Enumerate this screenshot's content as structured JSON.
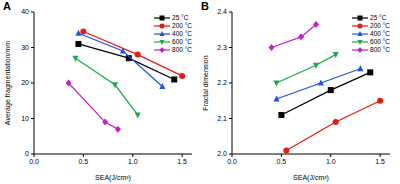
{
  "chart_data": [
    {
      "type": "line",
      "title": "A",
      "x_label": "SEA(J/cm³)",
      "y_label": "Average fragmentation/mm",
      "xlim": [
        0,
        1.6
      ],
      "xticks": [
        {
          "value": 0,
          "label": "0.0"
        },
        {
          "value": 0.5,
          "label": "0.5"
        },
        {
          "value": 1,
          "label": "1.0"
        },
        {
          "value": 1.5,
          "label": "1.5"
        }
      ],
      "ylim": [
        0,
        40
      ],
      "yticks": [
        0,
        10,
        20,
        30,
        40
      ],
      "legend": "upper right",
      "grid": false,
      "series": [
        {
          "name": "25 °C",
          "color": "#000000",
          "marker": "square",
          "x": [
            0.45,
            0.96,
            1.42
          ],
          "values": [
            31,
            27,
            21
          ]
        },
        {
          "name": "200 °C",
          "color": "#e8190f",
          "marker": "circle",
          "x": [
            0.5,
            1.05,
            1.5
          ],
          "values": [
            34.5,
            28,
            22
          ]
        },
        {
          "name": "400 °C",
          "color": "#1f4ee8",
          "marker": "triangle",
          "x": [
            0.45,
            0.9,
            1.3
          ],
          "values": [
            34,
            29,
            19
          ]
        },
        {
          "name": "600 °C",
          "color": "#1aa84a",
          "marker": "triangle-down",
          "x": [
            0.42,
            0.82,
            1.05
          ],
          "values": [
            27,
            19.5,
            11
          ]
        },
        {
          "name": "800 °C",
          "color": "#c51fc5",
          "marker": "diamond",
          "x": [
            0.35,
            0.72,
            0.85
          ],
          "values": [
            20,
            9,
            7
          ]
        }
      ]
    },
    {
      "type": "line",
      "title": "B",
      "x_label": "SEA(J/cm³)",
      "y_label": "Fractal dimension",
      "xlim": [
        0,
        1.6
      ],
      "xticks": [
        {
          "value": 0,
          "label": "0.0"
        },
        {
          "value": 0.5,
          "label": "0.5"
        },
        {
          "value": 1,
          "label": "1.0"
        },
        {
          "value": 1.5,
          "label": "1.5"
        }
      ],
      "ylim": [
        2.0,
        2.4
      ],
      "yticks": [
        {
          "value": 2.0,
          "label": "2.0"
        },
        2.1,
        2.2,
        2.3,
        {
          "value": 2.4,
          "label": "2.4"
        }
      ],
      "legend": "upper right",
      "grid": false,
      "series": [
        {
          "name": "25 °C",
          "color": "#000000",
          "marker": "square",
          "x": [
            0.5,
            1.0,
            1.4
          ],
          "values": [
            2.11,
            2.18,
            2.23
          ]
        },
        {
          "name": "200 °C",
          "color": "#e8190f",
          "marker": "circle",
          "x": [
            0.55,
            1.05,
            1.5
          ],
          "values": [
            2.01,
            2.09,
            2.15
          ]
        },
        {
          "name": "400 °C",
          "color": "#1f4ee8",
          "marker": "triangle",
          "x": [
            0.45,
            0.9,
            1.3
          ],
          "values": [
            2.155,
            2.2,
            2.24
          ]
        },
        {
          "name": "600 °C",
          "color": "#1aa84a",
          "marker": "triangle-down",
          "x": [
            0.45,
            0.85,
            1.05
          ],
          "values": [
            2.2,
            2.25,
            2.28
          ]
        },
        {
          "name": "800 °C",
          "color": "#c51fc5",
          "marker": "diamond",
          "x": [
            0.4,
            0.7,
            0.85
          ],
          "values": [
            2.3,
            2.33,
            2.365
          ]
        }
      ]
    }
  ]
}
